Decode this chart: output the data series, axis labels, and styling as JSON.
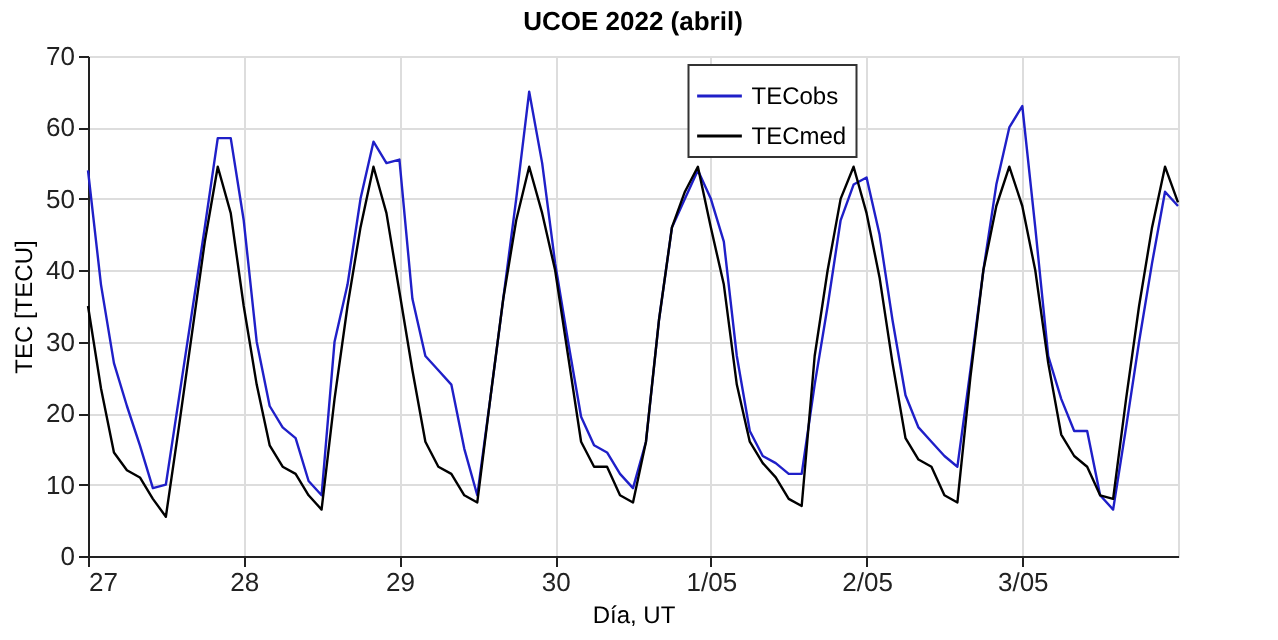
{
  "chart_data": {
    "type": "line",
    "title": "UCOE 2022 (abril)",
    "xlabel": "Día, UT",
    "ylabel": "TEC [TECU]",
    "x": [
      "2022-04-27T00:00",
      "2022-04-27T02:00",
      "2022-04-27T04:00",
      "2022-04-27T06:00",
      "2022-04-27T08:00",
      "2022-04-27T10:00",
      "2022-04-27T12:00",
      "2022-04-27T14:00",
      "2022-04-27T16:00",
      "2022-04-27T18:00",
      "2022-04-27T20:00",
      "2022-04-27T22:00",
      "2022-04-28T00:00",
      "2022-04-28T02:00",
      "2022-04-28T04:00",
      "2022-04-28T06:00",
      "2022-04-28T08:00",
      "2022-04-28T10:00",
      "2022-04-28T12:00",
      "2022-04-28T14:00",
      "2022-04-28T16:00",
      "2022-04-28T18:00",
      "2022-04-28T20:00",
      "2022-04-28T22:00",
      "2022-04-29T00:00",
      "2022-04-29T02:00",
      "2022-04-29T04:00",
      "2022-04-29T06:00",
      "2022-04-29T08:00",
      "2022-04-29T10:00",
      "2022-04-29T12:00",
      "2022-04-29T14:00",
      "2022-04-29T16:00",
      "2022-04-29T18:00",
      "2022-04-29T20:00",
      "2022-04-29T22:00",
      "2022-04-30T00:00",
      "2022-04-30T02:00",
      "2022-04-30T04:00",
      "2022-04-30T06:00",
      "2022-04-30T08:00",
      "2022-04-30T10:00",
      "2022-04-30T12:00",
      "2022-04-30T14:00",
      "2022-04-30T16:00",
      "2022-04-30T18:00",
      "2022-04-30T20:00",
      "2022-04-30T22:00",
      "2022-05-01T00:00",
      "2022-05-01T02:00",
      "2022-05-01T04:00",
      "2022-05-01T06:00",
      "2022-05-01T08:00",
      "2022-05-01T10:00",
      "2022-05-01T12:00",
      "2022-05-01T14:00",
      "2022-05-01T16:00",
      "2022-05-01T18:00",
      "2022-05-01T20:00",
      "2022-05-01T22:00",
      "2022-05-02T00:00",
      "2022-05-02T02:00",
      "2022-05-02T04:00",
      "2022-05-02T06:00",
      "2022-05-02T08:00",
      "2022-05-02T10:00",
      "2022-05-02T12:00",
      "2022-05-02T14:00",
      "2022-05-02T16:00",
      "2022-05-02T18:00",
      "2022-05-02T20:00",
      "2022-05-02T22:00",
      "2022-05-03T00:00",
      "2022-05-03T02:00",
      "2022-05-03T04:00",
      "2022-05-03T06:00",
      "2022-05-03T08:00",
      "2022-05-03T10:00",
      "2022-05-03T12:00",
      "2022-05-03T14:00",
      "2022-05-03T16:00",
      "2022-05-03T18:00",
      "2022-05-03T20:00",
      "2022-05-03T22:00",
      "2022-05-04T00:00"
    ],
    "series": [
      {
        "name": "TECobs",
        "color": "#1f1fc8",
        "values": [
          54,
          38,
          27,
          21,
          15.5,
          9.5,
          10,
          22,
          34,
          46,
          58.5,
          58.5,
          47,
          30,
          21,
          18,
          16.5,
          10.5,
          8.5,
          30,
          38,
          50,
          58,
          55,
          55.5,
          36,
          28,
          26,
          24,
          15,
          8.5,
          22,
          36,
          50,
          65,
          55,
          41,
          30,
          19.5,
          15.5,
          14.5,
          11.5,
          9.5,
          16,
          33,
          46,
          50,
          54,
          50,
          44,
          28,
          17.5,
          14,
          13,
          11.5,
          11.5,
          24,
          35,
          47,
          52,
          53,
          45,
          33,
          22.5,
          18,
          16,
          14,
          12.5,
          26,
          40,
          52,
          60,
          63,
          46,
          28,
          22,
          17.5,
          17.5,
          8.5,
          6.5,
          18,
          30,
          41,
          51,
          49
        ]
      },
      {
        "name": "TECmed",
        "color": "#000000",
        "values": [
          35,
          23.5,
          14.5,
          12,
          11,
          8,
          5.5,
          18,
          31,
          44,
          54.5,
          48,
          35,
          24,
          15.5,
          12.5,
          11.5,
          8.5,
          6.5,
          22,
          35,
          46,
          54.5,
          48,
          37,
          26,
          16,
          12.5,
          11.5,
          8.5,
          7.5,
          22,
          36,
          47,
          54.5,
          48,
          40,
          28,
          16,
          12.5,
          12.5,
          8.5,
          7.5,
          16,
          33,
          46,
          51,
          54.5,
          46,
          38,
          24,
          16,
          13,
          11,
          8,
          7,
          28,
          40,
          50,
          54.5,
          48,
          39,
          27,
          16.5,
          13.5,
          12.5,
          8.5,
          7.5,
          25,
          40,
          49,
          54.5,
          49,
          40,
          27,
          17,
          14,
          12.5,
          8.5,
          8,
          22,
          35,
          46,
          54.5,
          49.5
        ]
      }
    ],
    "xlim": [
      "2022-04-27",
      "2022-05-04"
    ],
    "xticks": [
      {
        "value": "2022-04-27",
        "label": "27"
      },
      {
        "value": "2022-04-28",
        "label": "28"
      },
      {
        "value": "2022-04-29",
        "label": "29"
      },
      {
        "value": "2022-04-30",
        "label": "30"
      },
      {
        "value": "2022-05-01",
        "label": "1/05"
      },
      {
        "value": "2022-05-02",
        "label": "2/05"
      },
      {
        "value": "2022-05-03",
        "label": "3/05"
      }
    ],
    "ylim": [
      0,
      70
    ],
    "yticks": [
      0,
      10,
      20,
      30,
      40,
      50,
      60,
      70
    ],
    "grid": true,
    "legend": "top",
    "marker": "none",
    "line_style": "solid"
  }
}
